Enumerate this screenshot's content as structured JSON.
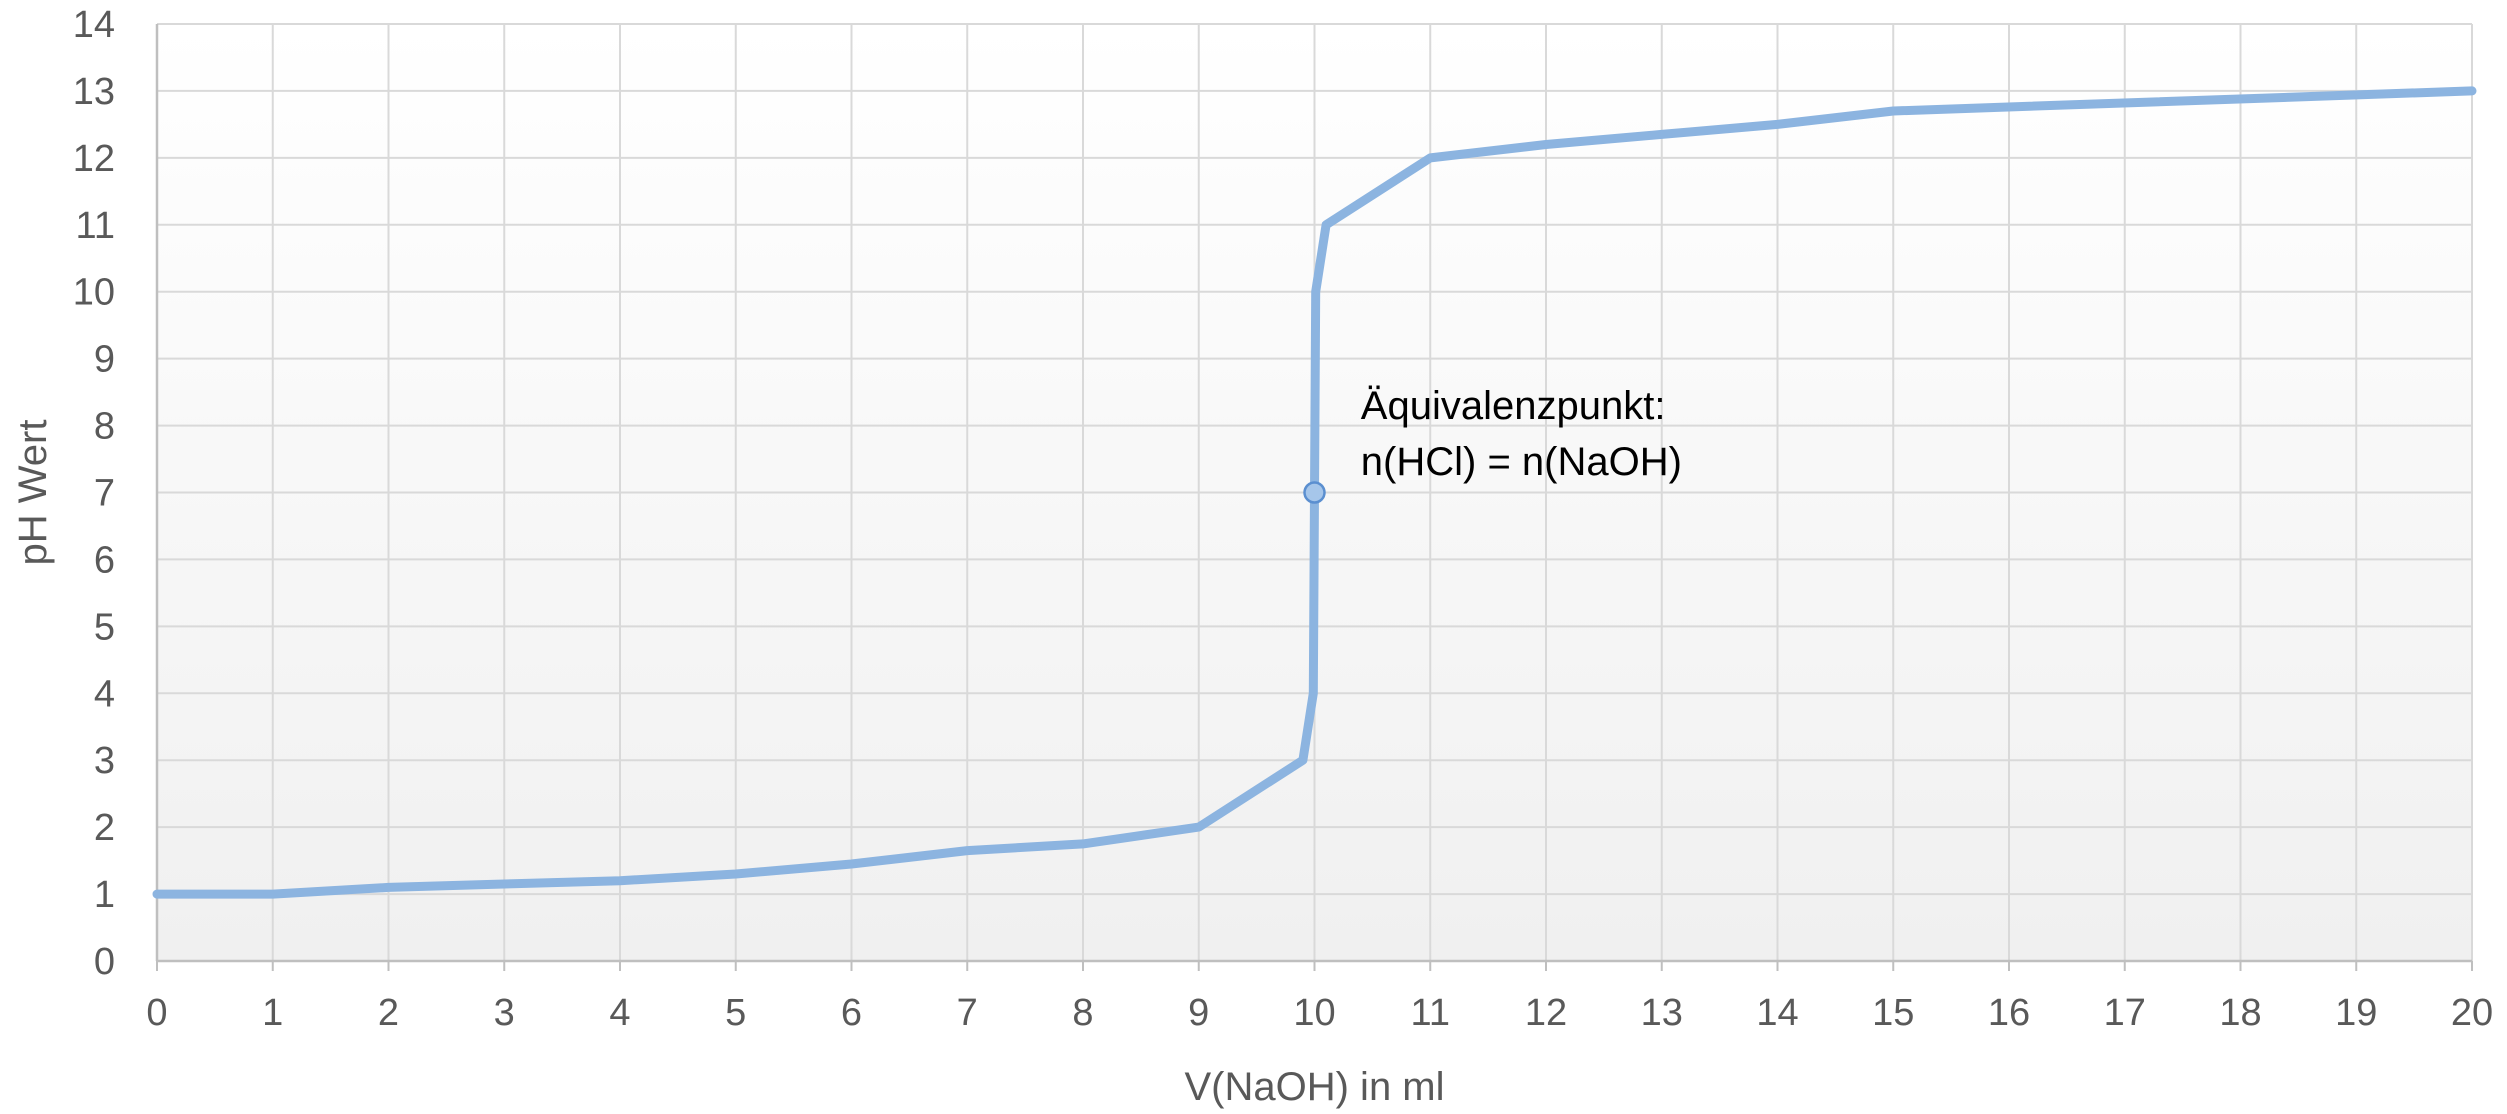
{
  "chart_data": {
    "type": "line",
    "title": "",
    "xlabel": "V(NaOH) in ml",
    "ylabel": "pH Wert",
    "xlim": [
      0,
      20
    ],
    "ylim": [
      0,
      14
    ],
    "x_ticks": [
      0,
      1,
      2,
      3,
      4,
      5,
      6,
      7,
      8,
      9,
      10,
      11,
      12,
      13,
      14,
      15,
      16,
      17,
      18,
      19,
      20
    ],
    "y_ticks": [
      0,
      1,
      2,
      3,
      4,
      5,
      6,
      7,
      8,
      9,
      10,
      11,
      12,
      13,
      14
    ],
    "grid": true,
    "legend": "none",
    "series": [
      {
        "color": "#8CB4E0",
        "x": [
          0,
          1,
          2,
          3,
          4,
          5,
          6,
          7,
          8,
          9,
          9.9,
          9.99,
          10,
          10.01,
          10.1,
          11,
          12,
          13,
          14,
          15,
          20
        ],
        "y": [
          1,
          1,
          1.1,
          1.15,
          1.2,
          1.3,
          1.45,
          1.65,
          1.75,
          2,
          3,
          4,
          7,
          10,
          11,
          12,
          12.2,
          12.35,
          12.5,
          12.7,
          13
        ]
      }
    ],
    "highlight_point": {
      "x": 10,
      "y": 7
    },
    "annotation": {
      "lines": [
        "Äquivalenzpunkt:",
        "n(HCl) = n(NaOH)"
      ],
      "x": 10.4,
      "y": 8.1
    }
  }
}
